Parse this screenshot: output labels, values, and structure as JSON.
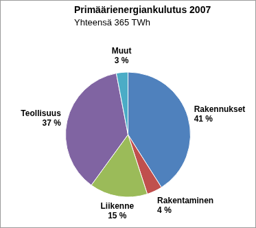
{
  "chart_data": {
    "type": "pie",
    "title": "Primäärienergiankulutus 2007",
    "subtitle": "Yhteensä 365 TWh",
    "categories": [
      "Rakennukset",
      "Rakentaminen",
      "Liikenne",
      "Teollisuus",
      "Muut"
    ],
    "values": [
      41,
      4,
      15,
      37,
      3
    ],
    "value_labels": [
      "41 %",
      "4 %",
      "15 %",
      "37 %",
      "3 %"
    ],
    "colors": [
      "#4f81bd",
      "#c0504d",
      "#9bbb59",
      "#8064a2",
      "#4bacc6"
    ],
    "data_labels": true
  }
}
